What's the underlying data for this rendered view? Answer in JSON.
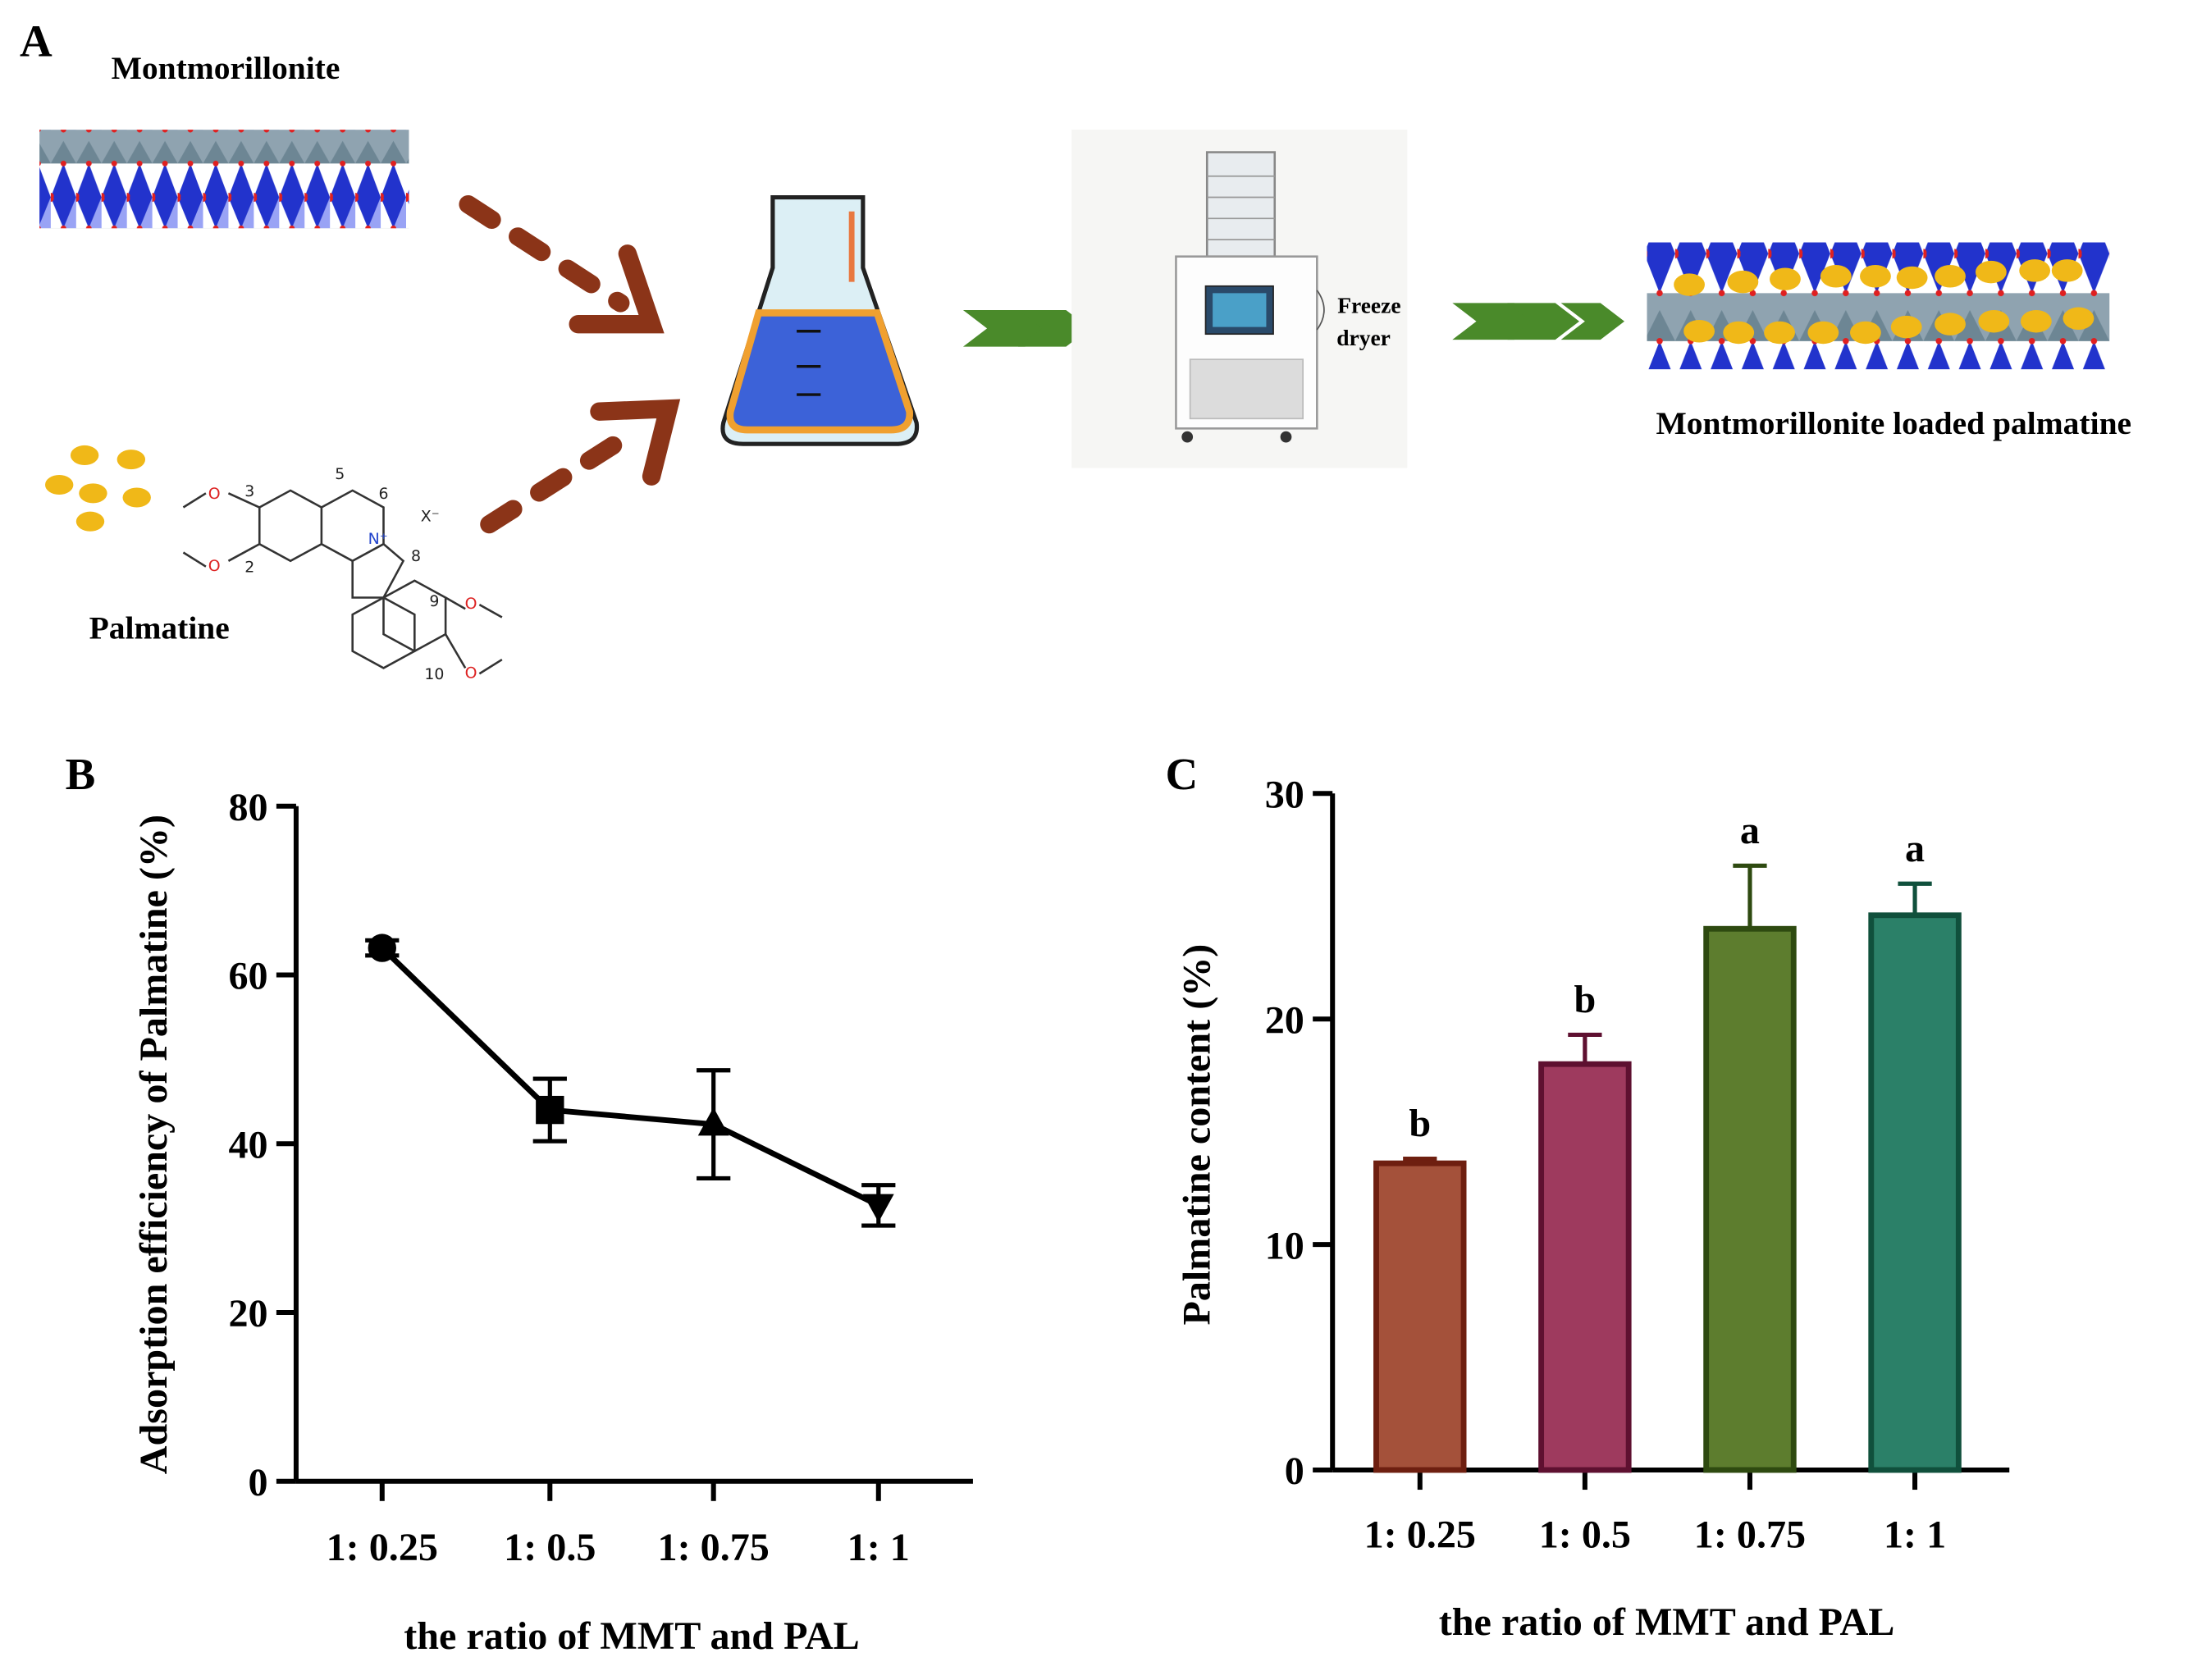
{
  "schematic": {
    "label": "A",
    "clay": "Montmorillonite",
    "drug": "Palmatine",
    "dryer_line1": "Freeze",
    "dryer_line2": "dryer",
    "product": "Montmorillonite loaded palmatine",
    "molecule_labels": [
      "3",
      "2",
      "5",
      "6",
      "8",
      "9",
      "10",
      "X⁻",
      "N⁺"
    ],
    "oxygen_labels": [
      "O",
      "O",
      "O",
      "O"
    ]
  },
  "chart_data": [
    {
      "type": "line",
      "label": "B",
      "categories": [
        "1: 0.25",
        "1: 0.5",
        "1: 0.75",
        "1: 1"
      ],
      "values": [
        63.2,
        44.0,
        42.3,
        32.7
      ],
      "errors": [
        0.9,
        3.7,
        6.4,
        2.4
      ],
      "markers": [
        "circle",
        "square",
        "triangle-up",
        "triangle-down"
      ],
      "color": "#000000",
      "ylim": [
        0,
        80
      ],
      "yticks": [
        0,
        20,
        40,
        60,
        80
      ],
      "xlabel": "the ratio of MMT and PAL",
      "ylabel": "Adsorption efficiency of Palmatine (%)"
    },
    {
      "type": "bar",
      "label": "C",
      "categories": [
        "1: 0.25",
        "1: 0.5",
        "1: 0.75",
        "1: 1"
      ],
      "values": [
        13.6,
        18.0,
        24.0,
        24.6
      ],
      "errors": [
        0.2,
        1.3,
        2.8,
        1.4
      ],
      "annotations": [
        "b",
        "b",
        "a",
        "a"
      ],
      "colors": [
        "#a4513a",
        "#9e3a5e",
        "#5d7d2e",
        "#2b8068"
      ],
      "edgecolors": [
        "#6e1f10",
        "#5e1030",
        "#2e4a10",
        "#10503c"
      ],
      "ylim": [
        0,
        30
      ],
      "yticks": [
        0,
        10,
        20,
        30
      ],
      "xlabel": "the ratio of MMT and PAL",
      "ylabel": "Palmatine content (%)"
    }
  ]
}
